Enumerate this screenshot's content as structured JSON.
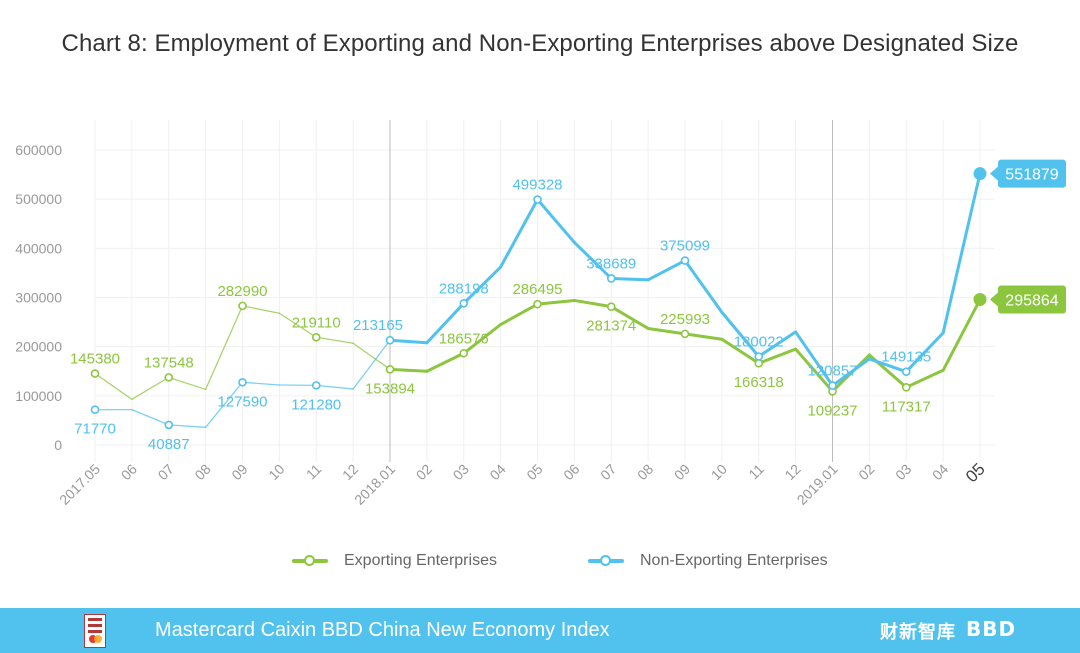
{
  "title": "Chart 8: Employment of Exporting and Non-Exporting Enterprises above Designated Size",
  "chart_data": {
    "type": "line",
    "title": "Chart 8: Employment of Exporting and Non-Exporting Enterprises above Designated Size",
    "xlabel": "",
    "ylabel": "",
    "ylim": [
      0,
      600000
    ],
    "yticks": [
      "0",
      "100000",
      "200000",
      "300000",
      "400000",
      "500000",
      "600000"
    ],
    "categories": [
      "2017.05",
      "06",
      "07",
      "08",
      "09",
      "10",
      "11",
      "12",
      "2018.01",
      "02",
      "03",
      "04",
      "05",
      "06",
      "07",
      "08",
      "09",
      "10",
      "11",
      "12",
      "2019.01",
      "02",
      "03",
      "04",
      "05"
    ],
    "grid": true,
    "legend_position": "bottom",
    "series": [
      {
        "name": "Exporting Enterprises",
        "color": "#8cc63f",
        "values": [
          145380,
          93000,
          137548,
          113000,
          282990,
          268000,
          219110,
          207000,
          153894,
          150000,
          186576,
          245000,
          286495,
          294000,
          281374,
          237000,
          225993,
          215000,
          166318,
          195000,
          109237,
          183000,
          117317,
          152000,
          295864
        ],
        "labels": [
          "145380",
          "",
          "137548",
          "",
          "282990",
          "",
          "219110",
          "",
          "153894",
          "",
          "186576",
          "",
          "286495",
          "",
          "281374",
          "",
          "225993",
          "",
          "166318",
          "",
          "109237",
          "",
          "117317",
          "",
          "295864"
        ]
      },
      {
        "name": "Non-Exporting Enterprises",
        "color": "#51c1ee",
        "values": [
          71770,
          72000,
          40887,
          36000,
          127590,
          122000,
          121280,
          114000,
          213165,
          208000,
          288198,
          362000,
          499328,
          412000,
          338689,
          336000,
          375099,
          270000,
          180022,
          230000,
          120857,
          175000,
          149135,
          228000,
          551879
        ],
        "labels": [
          "71770",
          "",
          "40887",
          "",
          "127590",
          "",
          "121280",
          "",
          "213165",
          "",
          "288198",
          "",
          "499328",
          "",
          "338689",
          "",
          "375099",
          "",
          "180022",
          "",
          "120857",
          "",
          "149135",
          "",
          "551879"
        ]
      }
    ]
  },
  "legend": {
    "exporting": "Exporting Enterprises",
    "non_exporting": "Non-Exporting Enterprises"
  },
  "footer": {
    "text": "Mastercard Caixin BBD China New Economy Index",
    "brand_cn": "财新智库",
    "brand_bbd": "BBD",
    "bg_color": "#51c1ee"
  }
}
